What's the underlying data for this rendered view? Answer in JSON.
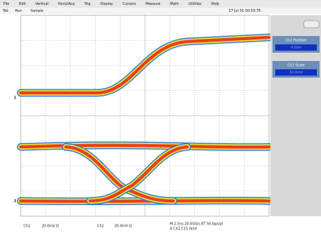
{
  "menu": [
    "File",
    "Edit",
    "Vertical",
    "Horiz/Acq",
    "Trig",
    "Display",
    "Cursors",
    "Measure",
    "Math",
    "Utilities",
    "Help"
  ],
  "status": {
    "brand": "Tek",
    "state": "Run",
    "mode": "Sample",
    "date": "17 Jul 01 00:03:76"
  },
  "controls": [
    {
      "label": "Ch2 Position",
      "value": "0.0div"
    },
    {
      "label": "Ch2 Scale",
      "value": "20.0mV"
    }
  ],
  "markers": {
    "ch1": "1",
    "ch2": "2"
  },
  "readouts": {
    "ch1": "Ch1",
    "ch1_scale": "20.0mV Ω",
    "ch2": "Ch2",
    "ch2_scale": "20.0mV Ω",
    "timebase": "M 2.5ns 20.0GS/s ET 50.0ps/pt",
    "trigger": "A Ch1 ƒ 15.0mV"
  }
}
